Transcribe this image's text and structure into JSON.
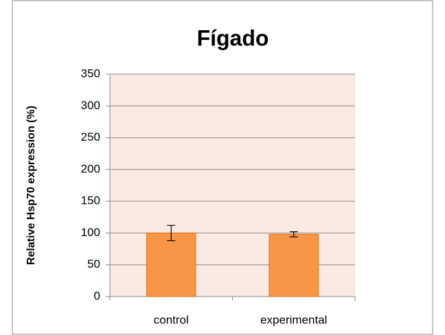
{
  "chart_data": {
    "type": "bar",
    "title": "Fígado",
    "ylabel": "Relative Hsp70 expression (%)",
    "categories": [
      "control",
      "experimental"
    ],
    "values": [
      100,
      98
    ],
    "errors": [
      12,
      4
    ],
    "color": "#f79646",
    "edgecolor": "#e46c0a",
    "plot_background": "#fbe9e3",
    "ylim": [
      0,
      350
    ],
    "yticks": [
      0,
      50,
      100,
      150,
      200,
      250,
      300,
      350
    ],
    "grid": true
  }
}
